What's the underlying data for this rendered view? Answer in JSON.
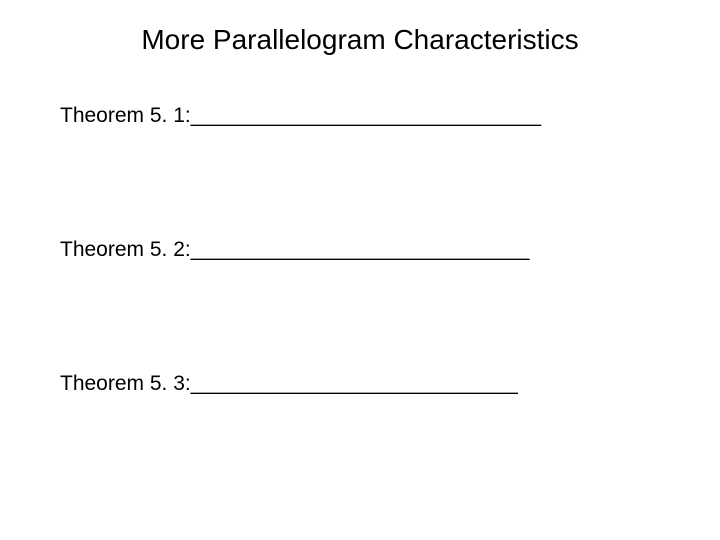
{
  "title": "More Parallelogram Characteristics",
  "theorems": [
    {
      "label": "Theorem 5. 1: ",
      "blank": "______________________________"
    },
    {
      "label": "Theorem 5. 2: ",
      "blank": "_____________________________"
    },
    {
      "label": "Theorem 5. 3: ",
      "blank": "____________________________"
    }
  ],
  "colors": {
    "background": "#ffffff",
    "text": "#000000"
  },
  "typography": {
    "title_fontsize": 28,
    "body_fontsize": 21,
    "font_family": "Arial"
  }
}
